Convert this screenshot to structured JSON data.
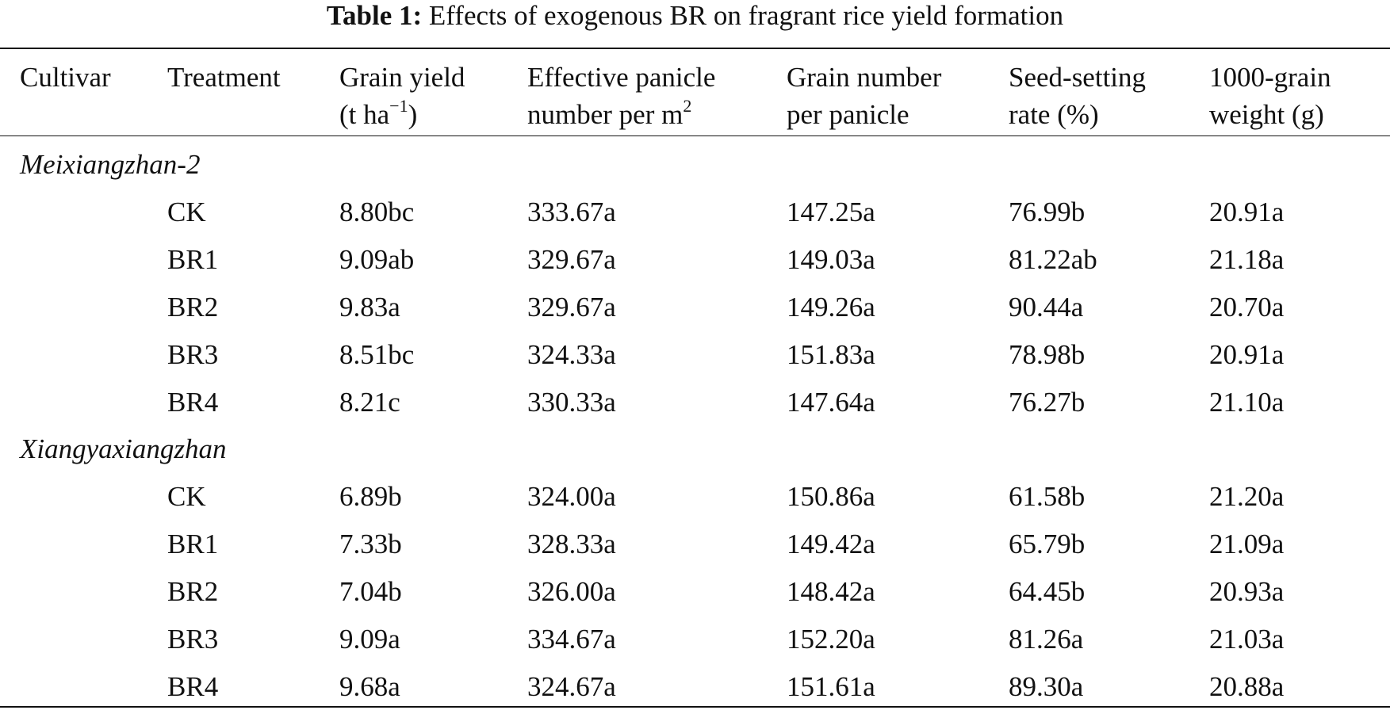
{
  "table": {
    "caption_label": "Table 1:",
    "caption_text": "Effects of exogenous BR on fragrant rice yield formation",
    "columns": [
      {
        "line1": "Cultivar",
        "line2": ""
      },
      {
        "line1": "Treatment",
        "line2": ""
      },
      {
        "line1": "Grain yield",
        "line2_pre": "(t ha",
        "line2_sup": "−1",
        "line2_post": ")"
      },
      {
        "line1": "Effective panicle",
        "line2_pre": "number per m",
        "line2_sup": "2",
        "line2_post": ""
      },
      {
        "line1": "Grain number",
        "line2": "per panicle"
      },
      {
        "line1": "Seed-setting",
        "line2": "rate (%)"
      },
      {
        "line1": "1000-grain",
        "line2": "weight (g)"
      }
    ],
    "groups": [
      {
        "cultivar": "Meixiangzhan-2",
        "rows": [
          [
            "CK",
            "8.80bc",
            "333.67a",
            "147.25a",
            "76.99b",
            "20.91a"
          ],
          [
            "BR1",
            "9.09ab",
            "329.67a",
            "149.03a",
            "81.22ab",
            "21.18a"
          ],
          [
            "BR2",
            "9.83a",
            "329.67a",
            "149.26a",
            "90.44a",
            "20.70a"
          ],
          [
            "BR3",
            "8.51bc",
            "324.33a",
            "151.83a",
            "78.98b",
            "20.91a"
          ],
          [
            "BR4",
            "8.21c",
            "330.33a",
            "147.64a",
            "76.27b",
            "21.10a"
          ]
        ]
      },
      {
        "cultivar": "Xiangyaxiangzhan",
        "rows": [
          [
            "CK",
            "6.89b",
            "324.00a",
            "150.86a",
            "61.58b",
            "21.20a"
          ],
          [
            "BR1",
            "7.33b",
            "328.33a",
            "149.42a",
            "65.79b",
            "21.09a"
          ],
          [
            "BR2",
            "7.04b",
            "326.00a",
            "148.42a",
            "64.45b",
            "20.93a"
          ],
          [
            "BR3",
            "9.09a",
            "334.67a",
            "152.20a",
            "81.26a",
            "21.03a"
          ],
          [
            "BR4",
            "9.68a",
            "324.67a",
            "151.61a",
            "89.30a",
            "20.88a"
          ]
        ]
      }
    ]
  }
}
